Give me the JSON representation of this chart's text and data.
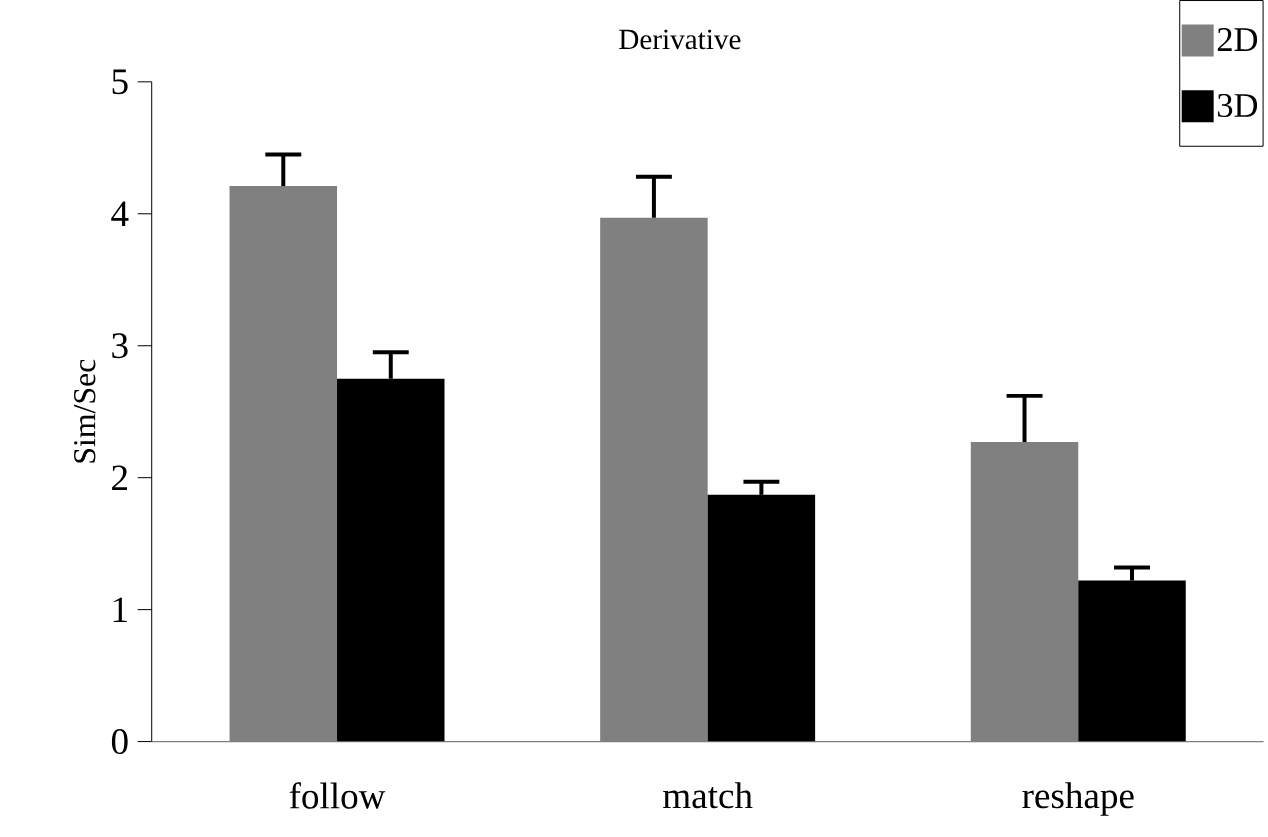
{
  "chart_data": {
    "type": "bar",
    "title": "Derivative",
    "ylabel": "Sim/Sec",
    "categories": [
      "follow",
      "match",
      "reshape"
    ],
    "series": [
      {
        "name": "2D",
        "color": "#808080",
        "values": [
          4.21,
          3.97,
          2.27
        ],
        "errors": [
          [
            4.21,
            4.45
          ],
          [
            3.97,
            4.28
          ],
          [
            2.27,
            2.62
          ]
        ]
      },
      {
        "name": "3D",
        "color": "#000000",
        "values": [
          2.75,
          1.87,
          1.22
        ],
        "errors": [
          [
            2.75,
            2.95
          ],
          [
            1.87,
            1.97
          ],
          [
            1.22,
            1.32
          ]
        ]
      }
    ],
    "ylim": [
      0,
      5
    ],
    "yticks": [
      0,
      1,
      2,
      3,
      4,
      5
    ],
    "legend": "top right",
    "grid": false
  }
}
